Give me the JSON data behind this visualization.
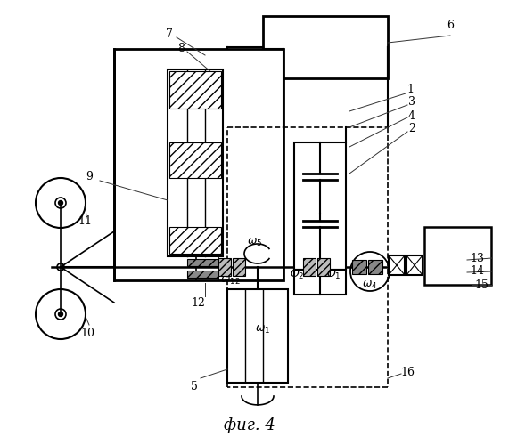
{
  "bg": "#ffffff",
  "fig_caption": "фиг. 4",
  "dpi": 100,
  "fw": 5.71,
  "fh": 5.0
}
